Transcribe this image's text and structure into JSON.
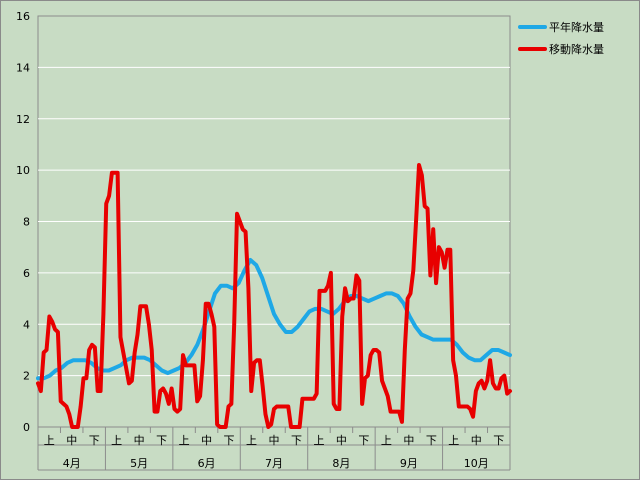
{
  "chart_data": {
    "type": "line",
    "title": "",
    "xlabel": "",
    "ylabel": "",
    "ylim": [
      0,
      16
    ],
    "yticks": [
      0,
      2,
      4,
      6,
      8,
      10,
      12,
      14,
      16
    ],
    "grid": "horizontal",
    "legend_position": "top-right",
    "background_color": "#c8dcc4",
    "months": [
      "4月",
      "5月",
      "6月",
      "7月",
      "8月",
      "9月",
      "10月"
    ],
    "periods": [
      "上",
      "中",
      "下"
    ],
    "series": [
      {
        "name": "平年降水量",
        "color": "#1ea8e6",
        "stroke_width": 4,
        "values": [
          1.9,
          1.9,
          2.0,
          2.2,
          2.3,
          2.5,
          2.6,
          2.6,
          2.6,
          2.5,
          2.3,
          2.2,
          2.2,
          2.3,
          2.4,
          2.6,
          2.7,
          2.7,
          2.7,
          2.6,
          2.4,
          2.2,
          2.1,
          2.2,
          2.3,
          2.5,
          2.8,
          3.2,
          3.8,
          4.5,
          5.2,
          5.5,
          5.5,
          5.4,
          5.6,
          6.1,
          6.5,
          6.3,
          5.8,
          5.1,
          4.4,
          4.0,
          3.7,
          3.7,
          3.9,
          4.2,
          4.5,
          4.6,
          4.6,
          4.5,
          4.4,
          4.6,
          4.9,
          5.1,
          5.1,
          5.0,
          4.9,
          5.0,
          5.1,
          5.2,
          5.2,
          5.1,
          4.8,
          4.3,
          3.9,
          3.6,
          3.5,
          3.4,
          3.4,
          3.4,
          3.4,
          3.2,
          2.9,
          2.7,
          2.6,
          2.6,
          2.8,
          3.0,
          3.0,
          2.9,
          2.8
        ]
      },
      {
        "name": "移動降水量",
        "color": "#e80000",
        "stroke_width": 4,
        "values": [
          1.7,
          1.4,
          2.9,
          3.0,
          4.3,
          4.1,
          3.8,
          3.7,
          1.0,
          0.9,
          0.8,
          0.5,
          0.0,
          0.0,
          0.0,
          0.8,
          1.9,
          1.9,
          3.0,
          3.2,
          3.1,
          1.4,
          1.4,
          4.4,
          8.7,
          9.0,
          9.9,
          9.9,
          9.9,
          3.5,
          2.9,
          2.3,
          1.7,
          1.8,
          2.9,
          3.6,
          4.7,
          4.7,
          4.7,
          4.0,
          3.0,
          0.6,
          0.6,
          1.4,
          1.5,
          1.3,
          0.9,
          1.5,
          0.7,
          0.6,
          0.7,
          2.8,
          2.4,
          2.4,
          2.4,
          2.4,
          1.0,
          1.2,
          2.6,
          4.8,
          4.8,
          4.4,
          3.9,
          0.1,
          0.0,
          0.0,
          0.0,
          0.8,
          0.9,
          4.0,
          8.3,
          8.0,
          7.7,
          7.6,
          5.4,
          1.4,
          2.5,
          2.6,
          2.6,
          1.6,
          0.5,
          0.0,
          0.1,
          0.7,
          0.8,
          0.8,
          0.8,
          0.8,
          0.8,
          0.0,
          0.0,
          0.0,
          0.0,
          1.1,
          1.1,
          1.1,
          1.1,
          1.1,
          1.3,
          5.3,
          5.3,
          5.3,
          5.5,
          6.0,
          0.9,
          0.7,
          0.7,
          4.3,
          5.4,
          4.9,
          5.0,
          5.0,
          5.9,
          5.7,
          0.9,
          1.9,
          2.0,
          2.8,
          3.0,
          3.0,
          2.9,
          1.8,
          1.5,
          1.2,
          0.6,
          0.6,
          0.6,
          0.6,
          0.2,
          3.0,
          5.0,
          5.2,
          6.1,
          8.1,
          10.2,
          9.8,
          8.6,
          8.5,
          5.9,
          7.7,
          5.6,
          7.0,
          6.8,
          6.2,
          6.9,
          6.9,
          2.6,
          2.0,
          0.8,
          0.8,
          0.8,
          0.8,
          0.7,
          0.4,
          1.4,
          1.7,
          1.8,
          1.5,
          1.8,
          2.6,
          1.7,
          1.5,
          1.5,
          1.9,
          2.0,
          1.3,
          1.4
        ]
      }
    ]
  }
}
